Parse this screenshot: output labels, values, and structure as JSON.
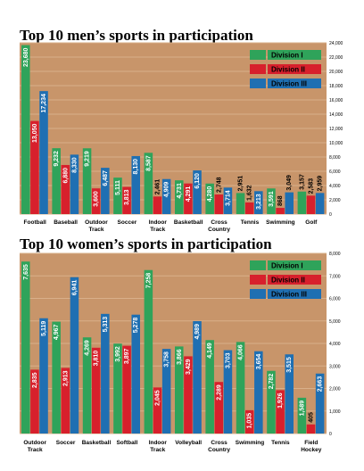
{
  "colors": {
    "plot_bg": "#c8956a",
    "grid": "#d9b08a",
    "division_1": "#2fa35a",
    "division_2": "#d7202c",
    "division_3": "#1f6fb2",
    "legend_bg": "#ffffff"
  },
  "chart_data": [
    {
      "type": "bar",
      "title": "Top 10 men’s sports in participation",
      "xlabel": "",
      "ylabel": "",
      "ylim": [
        0,
        24000
      ],
      "yticks": [
        "0",
        "2,000",
        "4,000",
        "6,000",
        "8,000",
        "10,000",
        "12,000",
        "14,000",
        "16,000",
        "18,000",
        "20,000",
        "22,000",
        "24,000"
      ],
      "grid": true,
      "legend_position": "top-right",
      "categories": [
        "Football",
        "Baseball",
        "Outdoor Track",
        "Soccer",
        "Indoor Track",
        "Basketball",
        "Cross Country",
        "Tennis",
        "Swimming",
        "Golf"
      ],
      "series": [
        {
          "name": "Division I",
          "values": [
            23680,
            9232,
            9219,
            5111,
            8587,
            4731,
            4280,
            2951,
            3591,
            3157
          ],
          "labels": [
            "23,680",
            "9,232",
            "9,219",
            "5,111",
            "8,587",
            "4,731",
            "4,280",
            "2,951",
            "3,591",
            "3,157"
          ]
        },
        {
          "name": "Division II",
          "values": [
            13050,
            6880,
            3600,
            3813,
            2461,
            4291,
            2748,
            1632,
            868,
            2583
          ],
          "labels": [
            "13,050",
            "6,880",
            "3,600",
            "3,813",
            "2,461",
            "4,291",
            "2,748",
            "1,632",
            "868",
            "2,583"
          ]
        },
        {
          "name": "Division III",
          "values": [
            17234,
            8330,
            6487,
            8130,
            4909,
            6120,
            3714,
            3213,
            3049,
            2959
          ],
          "labels": [
            "17,234",
            "8,330",
            "6,487",
            "8,130",
            "4,909",
            "6,120",
            "3,714",
            "3,213",
            "3,049",
            "2,959"
          ]
        }
      ]
    },
    {
      "type": "bar",
      "title": "Top 10 women’s sports in participation",
      "xlabel": "",
      "ylabel": "",
      "ylim": [
        0,
        8000
      ],
      "yticks": [
        "0",
        "1,000",
        "2,000",
        "3,000",
        "4,000",
        "5,000",
        "6,000",
        "7,000",
        "8,000"
      ],
      "grid": true,
      "legend_position": "top-right",
      "categories": [
        "Outdoor Track",
        "Soccer",
        "Basketball",
        "Softball",
        "Indoor Track",
        "Volleyball",
        "Cross Country",
        "Swimming",
        "Tennis",
        "Field Hockey"
      ],
      "series": [
        {
          "name": "Division I",
          "values": [
            7635,
            4967,
            4269,
            3992,
            7258,
            3866,
            4149,
            4066,
            2782,
            1589
          ],
          "labels": [
            "7,635",
            "4,967",
            "4,269",
            "3,992",
            "7,258",
            "3,866",
            "4,149",
            "4,066",
            "2,782",
            "1,589"
          ]
        },
        {
          "name": "Division II",
          "values": [
            2835,
            2913,
            3810,
            3897,
            2045,
            3429,
            2289,
            1035,
            1926,
            405
          ],
          "labels": [
            "2,835",
            "2,913",
            "3,810",
            "3,897",
            "2,045",
            "3,429",
            "2,289",
            "1,035",
            "1,926",
            "405"
          ]
        },
        {
          "name": "Division III",
          "values": [
            5119,
            6941,
            5313,
            5278,
            3758,
            4989,
            3703,
            3654,
            3515,
            2663
          ],
          "labels": [
            "5,119",
            "6,941",
            "5,313",
            "5,278",
            "3,758",
            "4,989",
            "3,703",
            "3,654",
            "3,515",
            "2,663"
          ]
        }
      ]
    }
  ]
}
